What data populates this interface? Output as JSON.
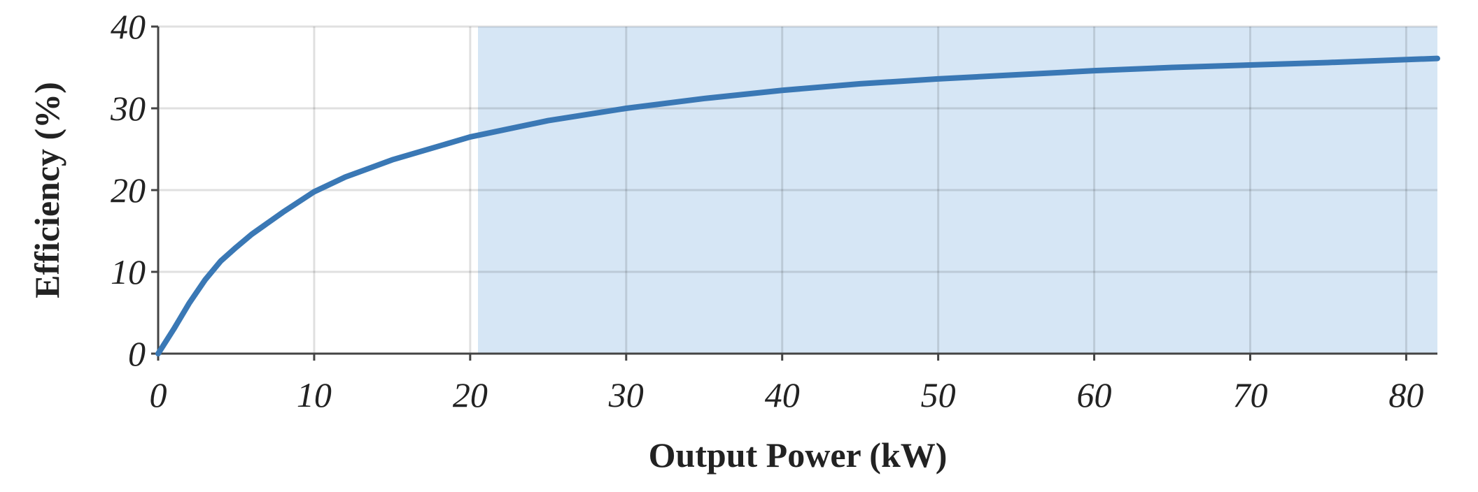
{
  "chart_data": {
    "type": "line",
    "x_label": "Output Power (kW)",
    "y_label": "Efficiency (%)",
    "x": [
      0,
      1,
      2,
      3,
      4,
      5,
      6,
      8,
      10,
      12,
      15,
      20,
      25,
      30,
      35,
      40,
      45,
      50,
      55,
      60,
      65,
      70,
      75,
      82
    ],
    "series": [
      {
        "name": "Efficiency",
        "color": "#3a78b5",
        "values": [
          0,
          3,
          6.2,
          9,
          11.3,
          13,
          14.6,
          17.3,
          19.8,
          21.6,
          23.7,
          26.5,
          28.5,
          30,
          31.2,
          32.2,
          33,
          33.6,
          34.1,
          34.6,
          35,
          35.3,
          35.6,
          36.1
        ]
      }
    ],
    "highlight_x": [
      20.5,
      82
    ],
    "highlight_color": "#d6e6f5",
    "xlim": [
      0,
      82
    ],
    "ylim": [
      0,
      40
    ],
    "xticks": [
      0,
      10,
      20,
      30,
      40,
      50,
      60,
      70,
      80
    ],
    "yticks": [
      0,
      10,
      20,
      30,
      40
    ],
    "grid": true
  }
}
